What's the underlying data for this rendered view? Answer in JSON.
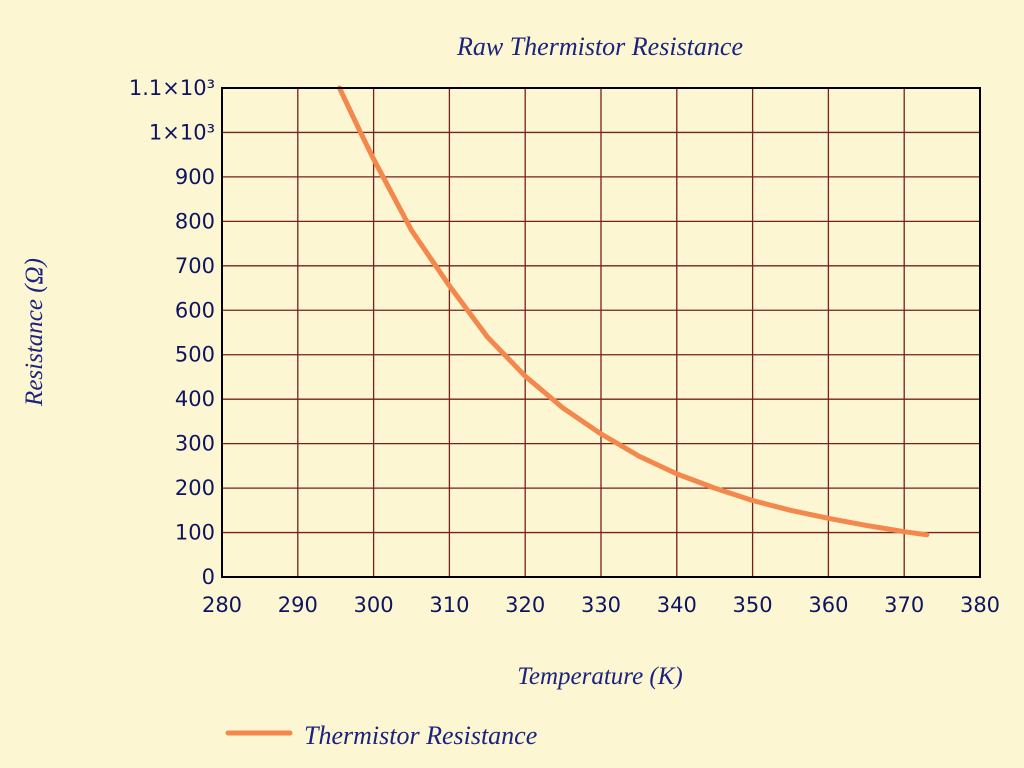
{
  "chart_data": {
    "type": "line",
    "title": "Raw Thermistor Resistance",
    "xlabel": "Temperature (K)",
    "ylabel": "Resistance (Ω)",
    "xlim": [
      280,
      380
    ],
    "ylim": [
      0,
      1100
    ],
    "x_ticks": [
      280,
      290,
      300,
      310,
      320,
      330,
      340,
      350,
      360,
      370,
      380
    ],
    "y_ticks": [
      {
        "value": 0,
        "label": "0"
      },
      {
        "value": 100,
        "label": "100"
      },
      {
        "value": 200,
        "label": "200"
      },
      {
        "value": 300,
        "label": "300"
      },
      {
        "value": 400,
        "label": "400"
      },
      {
        "value": 500,
        "label": "500"
      },
      {
        "value": 600,
        "label": "600"
      },
      {
        "value": 700,
        "label": "700"
      },
      {
        "value": 800,
        "label": "800"
      },
      {
        "value": 900,
        "label": "900"
      },
      {
        "value": 1000,
        "label": "1×10³"
      },
      {
        "value": 1100,
        "label": "1.1×10³"
      }
    ],
    "grid": true,
    "legend_position": "bottom-left",
    "colors": {
      "series": "#f4874b",
      "grid": "#7a1f1f",
      "frame": "#000000",
      "text": "#1a237e",
      "background": "#fdf6d3",
      "plot_background": "#fdf6d3"
    },
    "series": [
      {
        "name": "Thermistor Resistance",
        "x": [
          295.5,
          298,
          300,
          305,
          310,
          315,
          320,
          325,
          330,
          335,
          340,
          345,
          350,
          355,
          360,
          365,
          370,
          373
        ],
        "y": [
          1100,
          1010,
          940,
          780,
          655,
          540,
          452,
          380,
          322,
          272,
          232,
          200,
          172,
          150,
          132,
          116,
          102,
          95
        ]
      }
    ]
  }
}
